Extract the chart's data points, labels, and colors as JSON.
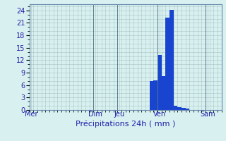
{
  "title": "",
  "xlabel": "Précipitations 24h ( mm )",
  "ylabel": "",
  "background_color": "#d8f0f0",
  "bar_color": "#1844d0",
  "grid_color": "#a8c4c4",
  "axis_label_color": "#2222aa",
  "tick_color": "#2222aa",
  "ylim": [
    0,
    25.5
  ],
  "yticks": [
    0,
    3,
    6,
    9,
    12,
    15,
    18,
    21,
    24
  ],
  "num_bars": 48,
  "bar_values": [
    0,
    0,
    0,
    0,
    0,
    0,
    0,
    0,
    0,
    0,
    0,
    0,
    0,
    0,
    0,
    0,
    0,
    0,
    0,
    0,
    0,
    0,
    0,
    0,
    0,
    0,
    0,
    0,
    0,
    0,
    7.0,
    7.2,
    13.2,
    8.2,
    22.2,
    24.2,
    1.1,
    0.6,
    0.5,
    0.3,
    0,
    0,
    0,
    0,
    0,
    0,
    0,
    0
  ],
  "day_labels": [
    "Mer",
    "Dim",
    "Jeu",
    "Ven",
    "Sam"
  ],
  "day_positions": [
    0.5,
    16.5,
    22.5,
    32.5,
    44.5
  ],
  "day_vlines": [
    0,
    16,
    22,
    32,
    44
  ]
}
